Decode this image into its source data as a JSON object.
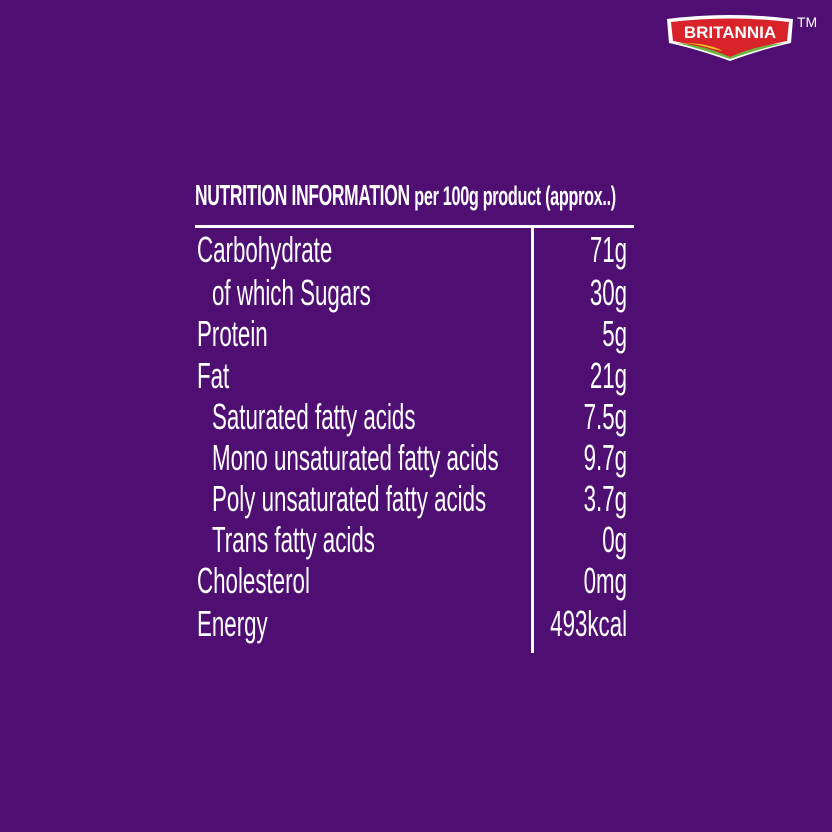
{
  "brand": {
    "logo_text": "BRITANNIA",
    "trademark": "TM",
    "colors": {
      "red": "#d8232a",
      "green": "#6cb33f",
      "yellow": "#f6c21c"
    }
  },
  "background_color": "#4e0e72",
  "table": {
    "title": "NUTRITION INFORMATION",
    "subtitle": "per 100g product (approx..)",
    "rows": [
      {
        "label": "Carbohydrate",
        "value": "71g",
        "indent": false
      },
      {
        "label": "of which Sugars",
        "value": "30g",
        "indent": true
      },
      {
        "label": "Protein",
        "value": "5g",
        "indent": false
      },
      {
        "label": "Fat",
        "value": "21g",
        "indent": false
      },
      {
        "label": "Saturated fatty acids",
        "value": "7.5g",
        "indent": true
      },
      {
        "label": "Mono unsaturated fatty acids",
        "value": "9.7g",
        "indent": true
      },
      {
        "label": "Poly unsaturated fatty acids",
        "value": "3.7g",
        "indent": true
      },
      {
        "label": "Trans fatty acids",
        "value": "0g",
        "indent": true
      },
      {
        "label": "Cholesterol",
        "value": "0mg",
        "indent": false
      },
      {
        "label": "Energy",
        "value": "493kcal",
        "indent": false
      }
    ]
  }
}
